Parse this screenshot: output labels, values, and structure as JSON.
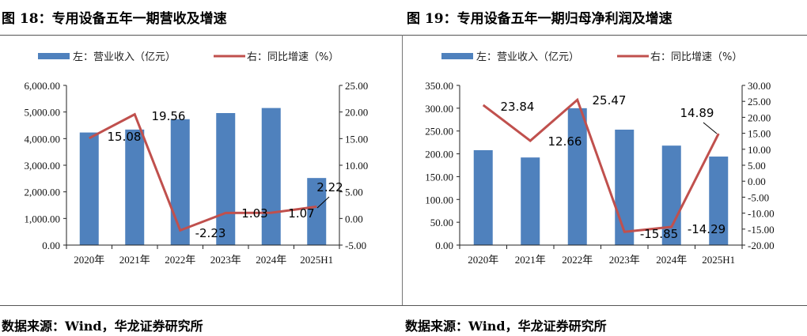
{
  "figures": [
    {
      "title": "图 18：专用设备五年一期营收及增速",
      "source": "数据来源：Wind，华龙证券研究所"
    },
    {
      "title": "图 19：专用设备五年一期归母净利润及增速",
      "source": "数据来源：Wind，华龙证券研究所"
    }
  ],
  "chart_data": [
    {
      "type": "bar+line",
      "title": "图 18：专用设备五年一期营收及增速",
      "categories": [
        "2020年",
        "2021年",
        "2022年",
        "2023年",
        "2024年",
        "2025H1"
      ],
      "series": [
        {
          "name": "左：营业收入（亿元）",
          "type": "bar",
          "axis": "left",
          "color": "#4F81BD",
          "values": [
            4230,
            4340,
            4730,
            4960,
            5150,
            2520
          ]
        },
        {
          "name": "右：同比增速（%）",
          "type": "line",
          "axis": "right",
          "color": "#C0504D",
          "values": [
            15.08,
            19.56,
            -2.23,
            1.03,
            1.07,
            2.22
          ],
          "labels": [
            "15.08",
            "19.56",
            "-2.23",
            "1.03",
            "1.07",
            "2.22"
          ]
        }
      ],
      "ylim_left": [
        0,
        6000
      ],
      "yticks_left": [
        "0.00",
        "1,000.00",
        "2,000.00",
        "3,000.00",
        "4,000.00",
        "5,000.00",
        "6,000.00"
      ],
      "ylim_right": [
        -5,
        25
      ],
      "yticks_right": [
        "-5.00",
        "0.00",
        "5.00",
        "10.00",
        "15.00",
        "20.00",
        "25.00"
      ],
      "legend": "top",
      "grid": false
    },
    {
      "type": "bar+line",
      "title": "图 19：专用设备五年一期归母净利润及增速",
      "categories": [
        "2020年",
        "2021年",
        "2022年",
        "2023年",
        "2024年",
        "2025H1"
      ],
      "series": [
        {
          "name": "左：营业收入（亿元）",
          "type": "bar",
          "axis": "left",
          "color": "#4F81BD",
          "values": [
            208,
            192,
            300,
            253,
            218,
            194
          ]
        },
        {
          "name": "右：同比增速（%）",
          "type": "line",
          "axis": "right",
          "color": "#C0504D",
          "values": [
            23.84,
            12.66,
            25.47,
            -15.85,
            -14.29,
            14.89
          ],
          "labels": [
            "23.84",
            "12.66",
            "25.47",
            "-15.85",
            "-14.29",
            "14.89"
          ]
        }
      ],
      "ylim_left": [
        0,
        350
      ],
      "yticks_left": [
        "0.00",
        "50.00",
        "100.00",
        "150.00",
        "200.00",
        "250.00",
        "300.00",
        "350.00"
      ],
      "ylim_right": [
        -20,
        30
      ],
      "yticks_right": [
        "-20.00",
        "-15.00",
        "-10.00",
        "-5.00",
        "0.00",
        "5.00",
        "10.00",
        "15.00",
        "20.00",
        "25.00",
        "30.00"
      ],
      "legend": "top",
      "grid": false
    }
  ]
}
